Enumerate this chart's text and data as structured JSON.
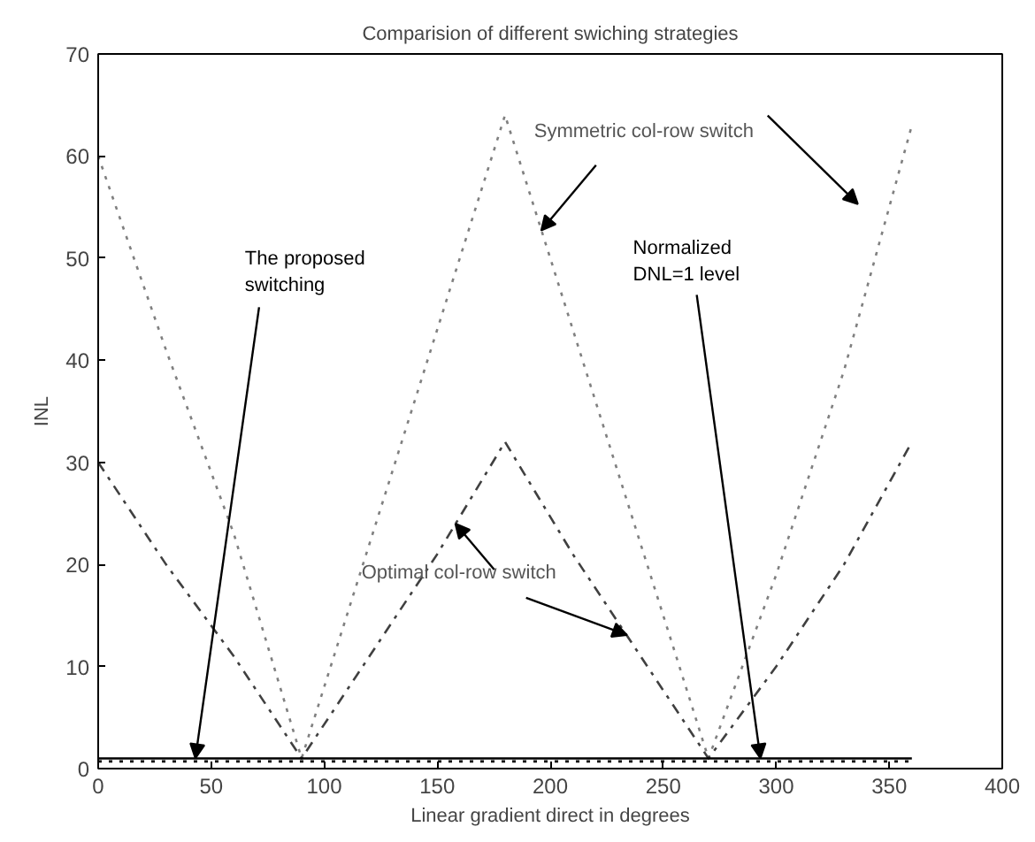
{
  "chart_data": {
    "type": "line",
    "title": "Comparision of different swiching strategies",
    "xlabel": "Linear gradient direct in degrees",
    "ylabel": "INL",
    "x": [
      0,
      30,
      60,
      90,
      120,
      150,
      180,
      210,
      240,
      270,
      300,
      330,
      360
    ],
    "series": [
      {
        "color": "#808080",
        "line_style": "dotted",
        "values": [
          60,
          41,
          23,
          1,
          22,
          43,
          64,
          43,
          22,
          1,
          19,
          39,
          63
        ]
      },
      {
        "color": "#404040",
        "line_style": "dashdot",
        "values": [
          30,
          20,
          11,
          1,
          11,
          21,
          32,
          21,
          11,
          1,
          10,
          20,
          32
        ]
      },
      {
        "color": "#000000",
        "line_style": "dotted",
        "values": [
          0.7,
          0.7,
          0.7,
          0.7,
          0.7,
          0.7,
          0.7,
          0.7,
          0.7,
          0.7,
          0.7,
          0.7,
          0.7
        ]
      },
      {
        "color": "#000000",
        "line_style": "solid",
        "values": [
          1,
          1,
          1,
          1,
          1,
          1,
          1,
          1,
          1,
          1,
          1,
          1,
          1
        ]
      }
    ],
    "annotations": [
      {
        "text": "The proposed switching",
        "x": 43,
        "y": 1
      },
      {
        "text": "Symmetric col-row switch",
        "x": 196,
        "y": 52.7
      },
      {
        "text": "Normalized DNL=1 level",
        "x": 293,
        "y": 1
      },
      {
        "text": "Optimal col-row switch",
        "x": 158,
        "y": 24
      }
    ],
    "xlim": [
      0,
      400
    ],
    "ylim": [
      0,
      70
    ],
    "xticks": [
      0,
      50,
      100,
      150,
      200,
      250,
      300,
      350,
      400
    ],
    "yticks": [
      0,
      10,
      20,
      30,
      40,
      50,
      60,
      70
    ],
    "marker": "none"
  }
}
